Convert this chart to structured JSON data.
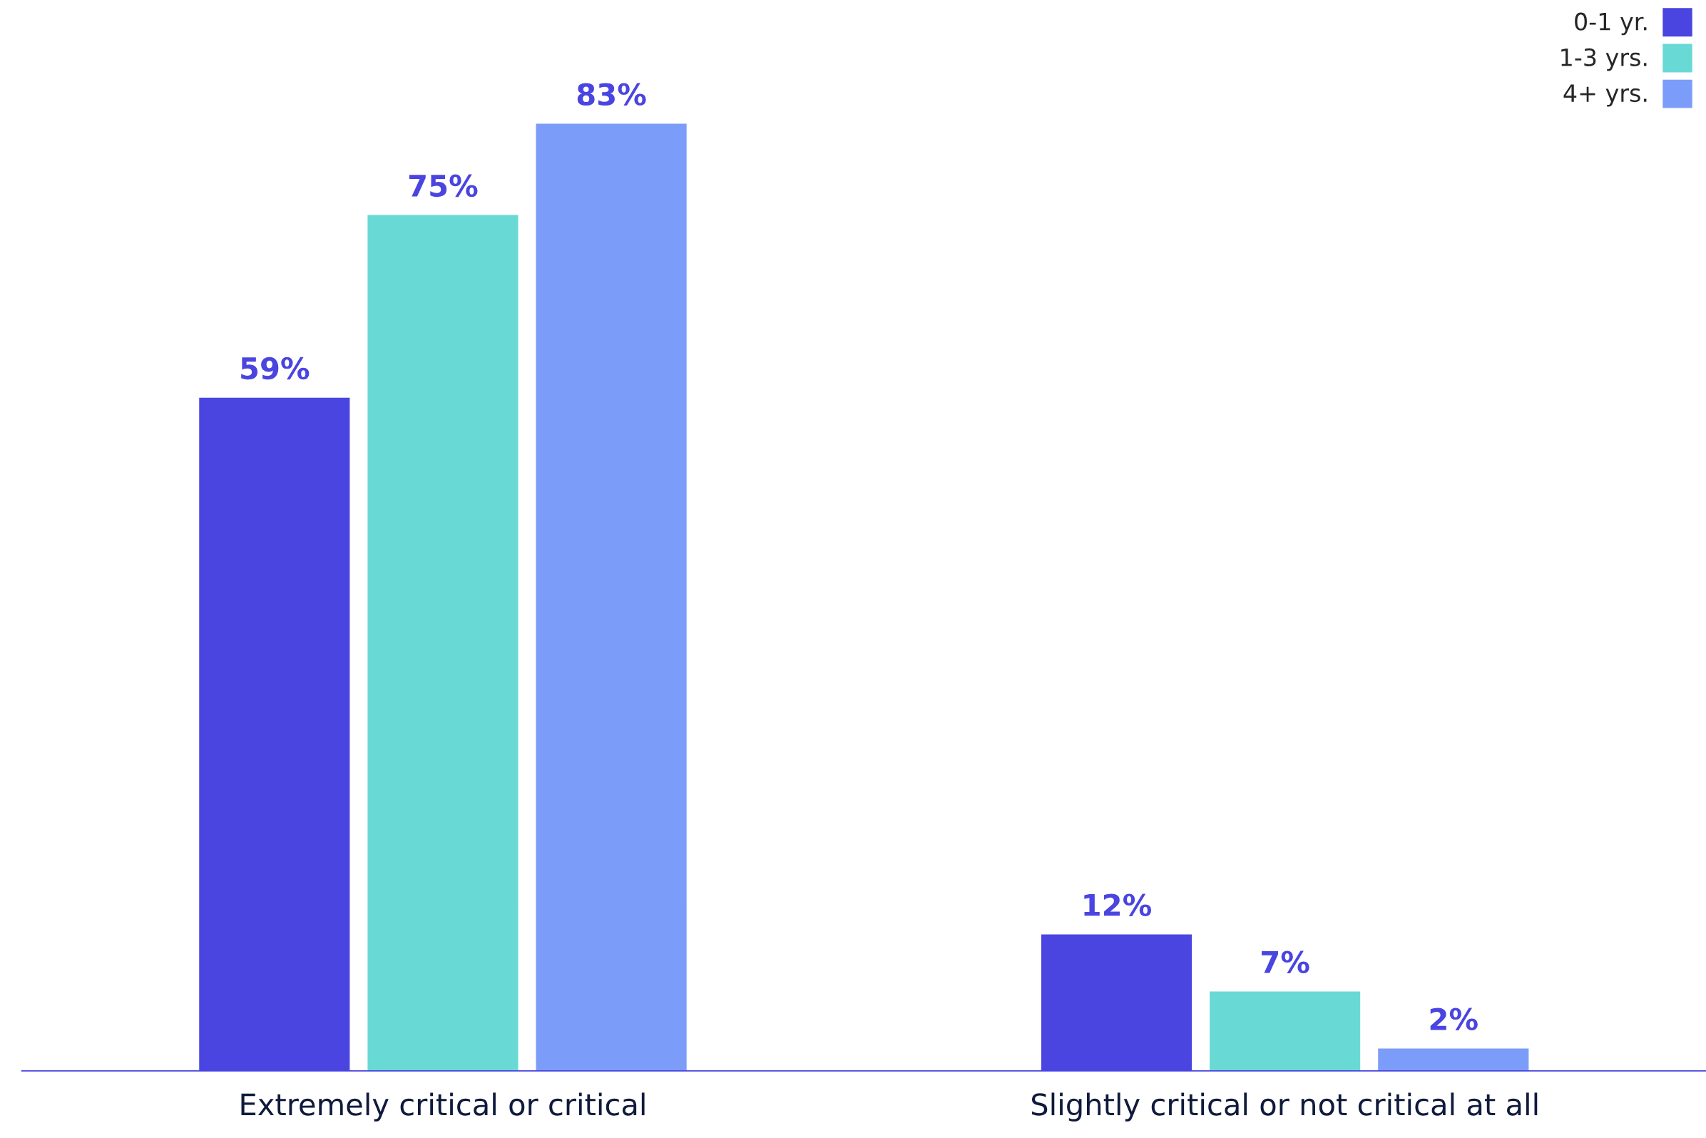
{
  "chart_data": {
    "type": "bar",
    "categories": [
      "Extremely critical or critical",
      "Slightly critical or not critical at all"
    ],
    "series": [
      {
        "name": "0-1 yr.",
        "color": "#4a45e0",
        "values": [
          59,
          12
        ],
        "value_labels": [
          "59%",
          "12%"
        ]
      },
      {
        "name": "1-3 yrs.",
        "color": "#69d9d5",
        "values": [
          75,
          7
        ],
        "value_labels": [
          "75%",
          "7%"
        ]
      },
      {
        "name": "4+ yrs.",
        "color": "#7b9cf9",
        "values": [
          83,
          2
        ],
        "value_labels": [
          "83%",
          "2%"
        ]
      }
    ],
    "legend": "top right",
    "grid": false,
    "tick_labels": "x"
  }
}
